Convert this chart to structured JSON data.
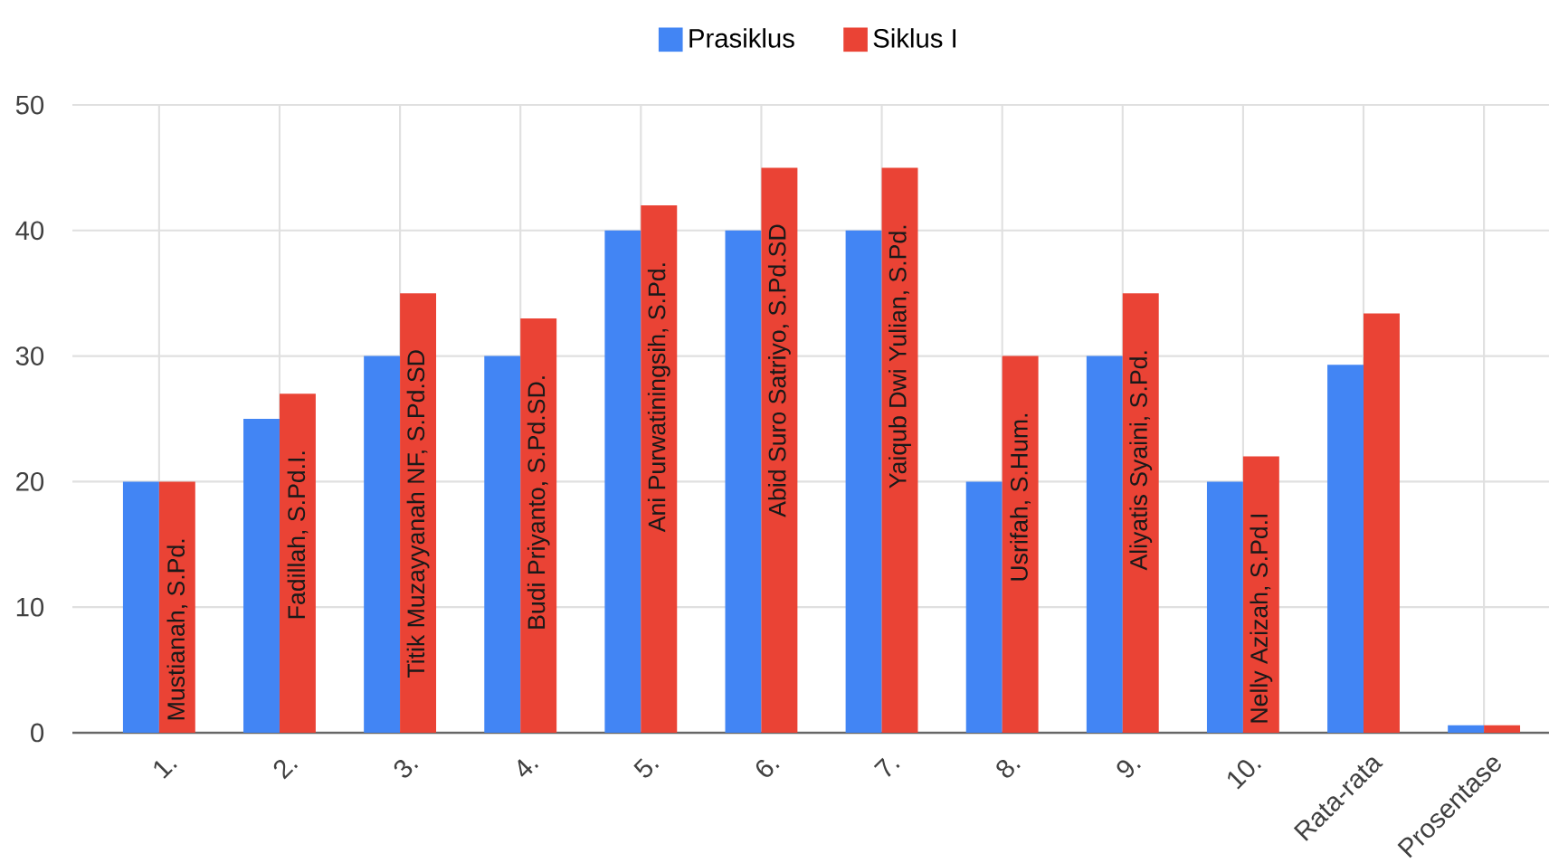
{
  "chart_data": {
    "type": "bar",
    "categories": [
      "1.",
      "2.",
      "3.",
      "4.",
      "5.",
      "6.",
      "7.",
      "8.",
      "9.",
      "10.",
      "Rata-rata",
      "Prosentase"
    ],
    "series": [
      {
        "name": "Prasiklus",
        "color": "#4285f4",
        "values": [
          20,
          25,
          30,
          30,
          40,
          40,
          40,
          20,
          30,
          20,
          29.3,
          0.6
        ]
      },
      {
        "name": "Siklus I",
        "color": "#ea4335",
        "values": [
          20,
          27,
          35,
          33,
          42,
          45,
          45,
          30,
          35,
          22,
          33.4,
          0.6
        ]
      }
    ],
    "annotations": [
      "Mustianah, S.Pd.",
      "Fadillah, S.Pd.I.",
      "Titik Muzayyanah NF, S.Pd.SD",
      "Budi Priyanto, S.Pd.SD.",
      "Ani Purwatiningsih, S.Pd.",
      "Abid Suro Satriyo, S.Pd.SD",
      "Yaiqub Dwi Yulian, S.Pd.",
      "Usrifah, S.Hum.",
      "Aliyatis Syaini, S.Pd.",
      "Nelly Azizah, S.Pd.I"
    ],
    "ylim": [
      0,
      50
    ],
    "yticks": [
      0,
      10,
      20,
      30,
      40,
      50
    ],
    "grid": true,
    "legend": "top"
  }
}
